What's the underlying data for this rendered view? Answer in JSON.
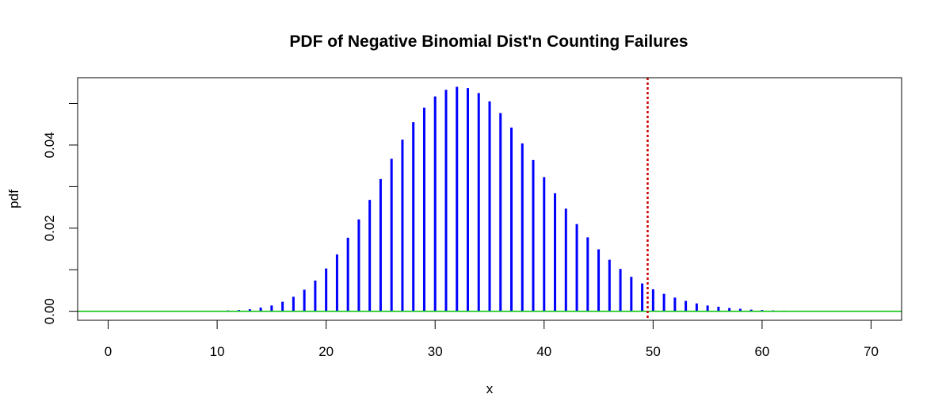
{
  "chart_data": {
    "type": "bar",
    "title": "PDF of Negative Binomial Dist'n Counting Failures",
    "xlabel": "x",
    "ylabel": "pdf",
    "xlim": [
      -2.8,
      72.8
    ],
    "ylim": [
      -0.00216,
      0.0562
    ],
    "xticks": [
      0,
      10,
      20,
      30,
      40,
      50,
      60,
      70
    ],
    "yticks": [
      0,
      0.01,
      0.02,
      0.03,
      0.04,
      0.05
    ],
    "ytick_labels": [
      "0.00",
      "",
      "0.02",
      "",
      "0.04",
      ""
    ],
    "grid": false,
    "legend": "none",
    "bar_color": "#0000ff",
    "baseline": {
      "y": 0,
      "color": "#00c000"
    },
    "reference_line": {
      "x": 49.5,
      "color": "#cc0000",
      "style": "dotted"
    },
    "x": [
      0,
      1,
      2,
      3,
      4,
      5,
      6,
      7,
      8,
      9,
      10,
      11,
      12,
      13,
      14,
      15,
      16,
      17,
      18,
      19,
      20,
      21,
      22,
      23,
      24,
      25,
      26,
      27,
      28,
      29,
      30,
      31,
      32,
      33,
      34,
      35,
      36,
      37,
      38,
      39,
      40,
      41,
      42,
      43,
      44,
      45,
      46,
      47,
      48,
      49,
      50,
      51,
      52,
      53,
      54,
      55,
      56,
      57,
      58,
      59,
      60,
      61,
      62,
      63,
      64,
      65,
      66,
      67,
      68,
      69,
      70
    ],
    "values": [
      0,
      0,
      0,
      0,
      0,
      0,
      0,
      0,
      0,
      0,
      0.0001,
      0.0002,
      0.0003,
      0.0005,
      0.0009,
      0.0014,
      0.0023,
      0.0035,
      0.0052,
      0.0074,
      0.0103,
      0.0137,
      0.0177,
      0.0221,
      0.0268,
      0.0318,
      0.0367,
      0.0413,
      0.0455,
      0.049,
      0.0517,
      0.0533,
      0.054,
      0.0537,
      0.0525,
      0.0505,
      0.0477,
      0.0442,
      0.0404,
      0.0364,
      0.0323,
      0.0284,
      0.0247,
      0.021,
      0.0178,
      0.0149,
      0.0124,
      0.0102,
      0.0083,
      0.0067,
      0.0053,
      0.0042,
      0.0033,
      0.0025,
      0.0019,
      0.0014,
      0.0011,
      0.0008,
      0.0006,
      0.0004,
      0.0003,
      0.0002,
      0.00015,
      0.0001,
      7e-05,
      5e-05,
      3e-05,
      2e-05,
      1e-05,
      1e-05,
      1e-05
    ]
  }
}
